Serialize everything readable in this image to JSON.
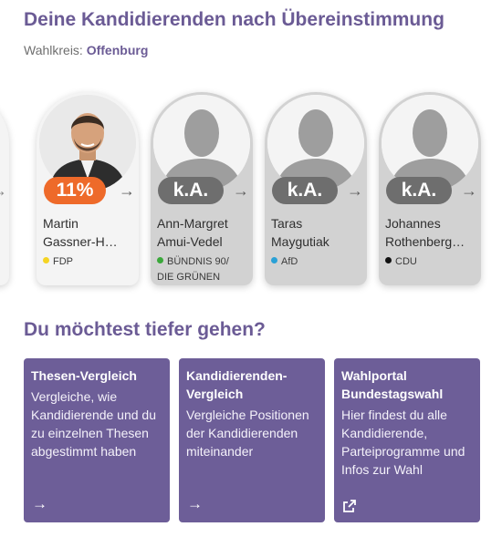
{
  "header": {
    "title": "Deine Kandidierenden nach Übereinstimmung",
    "wahlkreis_label": "Wahlkreis:",
    "wahlkreis_value": "Offenburg"
  },
  "candidates": [
    {
      "match": "11%",
      "name_line1": "Martin",
      "name_line2": "Gassner-H…",
      "party": "FDP",
      "party_color": "#f5d423",
      "photo": "portrait"
    },
    {
      "match": "k.A.",
      "name_line1": "Ann-Margret",
      "name_line2": "Amui-Vedel",
      "party_line1": "BÜNDNIS 90/",
      "party_line2": "DIE GRÜNEN",
      "party_color": "#3aa83a",
      "photo": "placeholder-silhouette"
    },
    {
      "match": "k.A.",
      "name_line1": "Taras",
      "name_line2": "Maygutiak",
      "party": "AfD",
      "party_color": "#2aa1d6",
      "photo": "placeholder-silhouette"
    },
    {
      "match": "k.A.",
      "name_line1": "Johannes",
      "name_line2": "Rothenberg…",
      "party": "CDU",
      "party_color": "#111111",
      "photo": "placeholder-silhouette"
    }
  ],
  "deeper": {
    "title": "Du möchtest tiefer gehen?",
    "tiles": [
      {
        "title": "Thesen-Vergleich",
        "text": "Vergleiche, wie Kandidierende und du zu einzelnen Thesen abgestimmt haben",
        "icon": "arrow-right-icon"
      },
      {
        "title": "Kandidierenden-Vergleich",
        "text": "Vergleiche Positionen der Kandidierenden miteinander",
        "icon": "arrow-right-icon"
      },
      {
        "title": "Wahlportal Bundestagswahl",
        "text": "Hier findest du alle Kandidierende, Parteiprogramme und Infos zur Wahl",
        "icon": "external-link-icon"
      }
    ]
  }
}
